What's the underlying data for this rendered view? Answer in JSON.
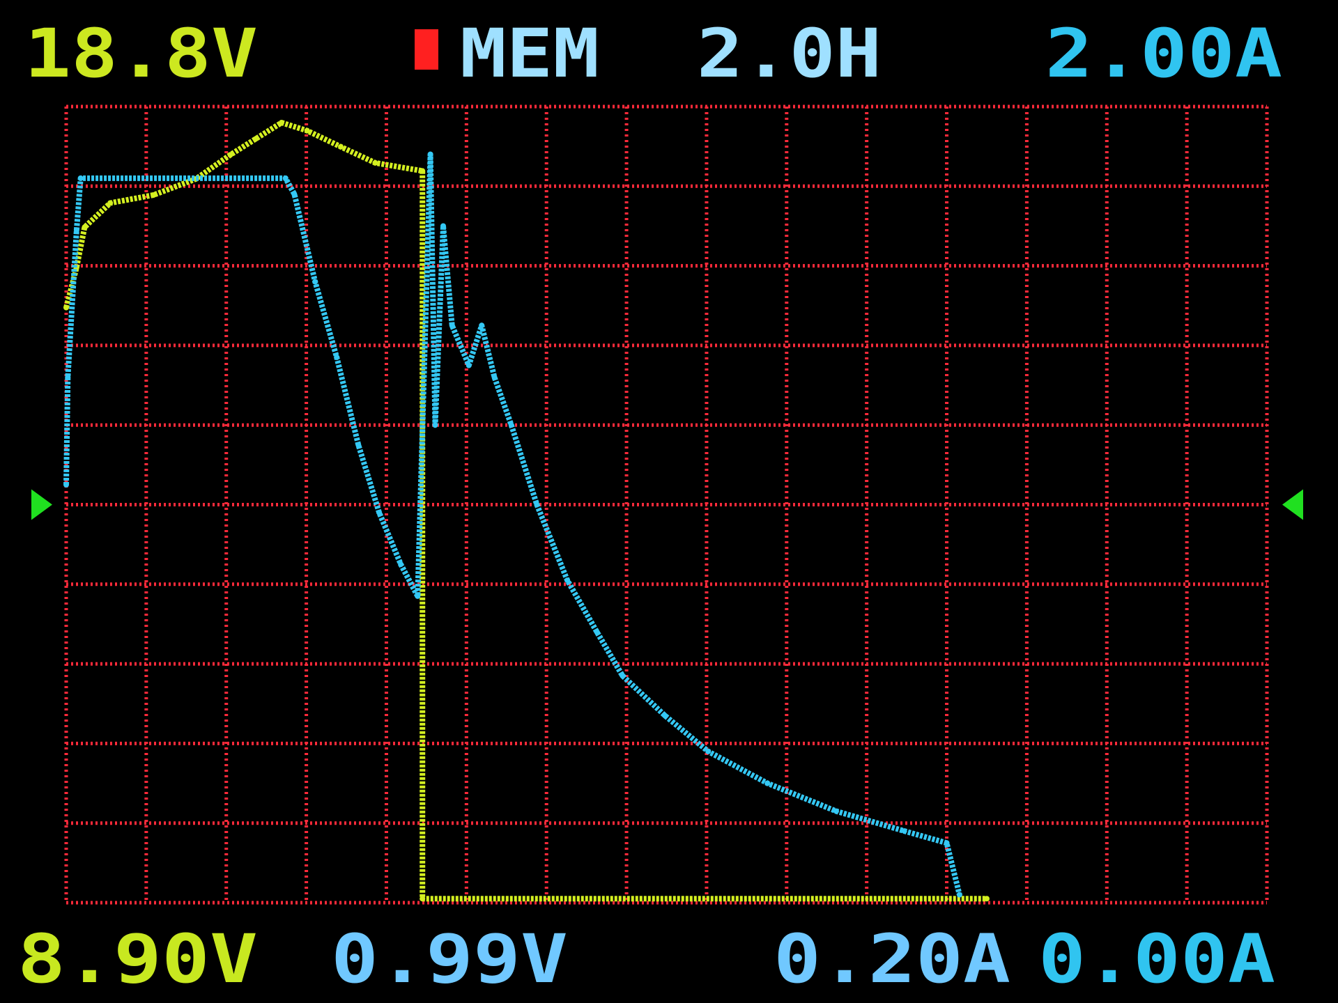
{
  "header": {
    "voltage_max": "18.8V",
    "mode": "MEM",
    "time_span": "2.0H",
    "current_max": "2.00A"
  },
  "footer": {
    "voltage_min": "8.90V",
    "voltage_reading": "0.99V",
    "current_reading": "0.20A",
    "current_min": "0.00A"
  },
  "colors": {
    "background": "#000000",
    "grid": "#ff2a3a",
    "voltage": "#d4f020",
    "current": "#34c8f4",
    "mem_indicator": "#ff2020",
    "trigger_marker": "#20e020"
  },
  "icons": {
    "mem_indicator": "red-square-icon",
    "level_marker": "arrow-marker-icon"
  },
  "chart_data": {
    "type": "line",
    "grid": true,
    "x_divisions": 15,
    "y_divisions": 10,
    "xlim": [
      0,
      15
    ],
    "series": [
      {
        "axis": "voltage",
        "ylim": [
          8.9,
          18.8
        ],
        "unit": "V",
        "x": [
          0,
          0.13,
          0.23,
          0.55,
          1.09,
          1.62,
          2.05,
          2.37,
          2.69,
          3.01,
          3.43,
          3.86,
          4.45,
          4.45,
          11.5
        ],
        "y": [
          16.3,
          16.8,
          17.3,
          17.6,
          17.7,
          17.9,
          18.2,
          18.4,
          18.6,
          18.5,
          18.3,
          18.1,
          18.0,
          8.95,
          8.95
        ]
      },
      {
        "axis": "current",
        "ylim": [
          0.0,
          2.0
        ],
        "unit": "A",
        "x": [
          0,
          0.02,
          0.13,
          0.18,
          2.74,
          2.85,
          3.11,
          3.38,
          3.65,
          3.91,
          4.18,
          4.39,
          4.55,
          4.61,
          4.71,
          4.82,
          5.03,
          5.19,
          5.35,
          5.56,
          5.88,
          6.26,
          6.63,
          6.95,
          7.48,
          8.02,
          8.76,
          9.62,
          10.47,
          11.0,
          11.16
        ],
        "y": [
          1.05,
          1.32,
          1.69,
          1.82,
          1.82,
          1.78,
          1.56,
          1.37,
          1.15,
          0.98,
          0.85,
          0.77,
          1.88,
          1.2,
          1.7,
          1.45,
          1.35,
          1.45,
          1.32,
          1.2,
          1.0,
          0.81,
          0.68,
          0.57,
          0.47,
          0.38,
          0.3,
          0.23,
          0.18,
          0.15,
          0.02
        ]
      }
    ]
  }
}
